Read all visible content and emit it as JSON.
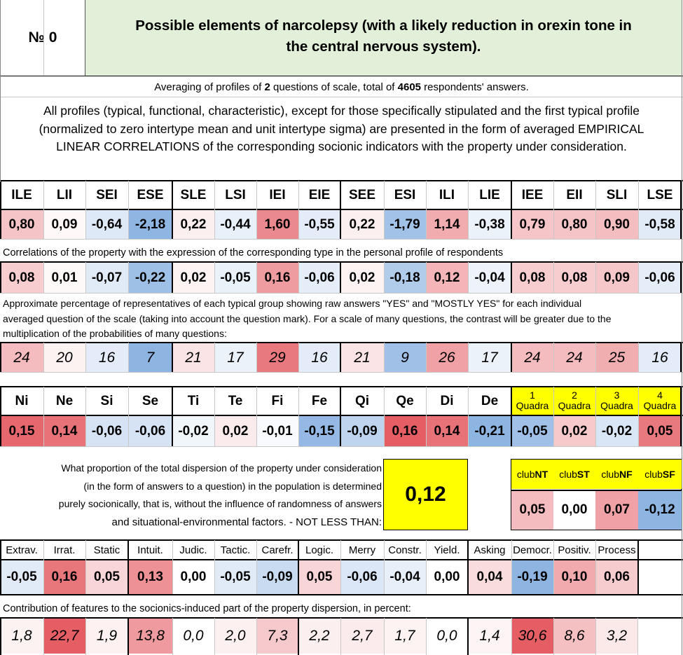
{
  "header": {
    "number_label": "№ 0",
    "title_line1": "Possible elements of narcolepsy (with a likely reduction in orexin tone in",
    "title_line2": "the central nervous system).",
    "title_bg": "#e2efd9"
  },
  "averaging": {
    "pre": "Averaging of profiles of ",
    "questions": "2",
    "mid": " questions of scale, total of ",
    "respondents": "4605",
    "post": " respondents' answers."
  },
  "description": {
    "line1": "All profiles (typical, functional, characteristic), except for those specifically stipulated and the first typical profile",
    "line2": "(normalized to zero intertype mean and unit intertype sigma) are presented in the form of averaged EMPIRICAL",
    "line3": "LINEAR CORRELATIONS of the corresponding socionic indicators with the property under consideration."
  },
  "types": {
    "labels": [
      "ILE",
      "LII",
      "SEI",
      "ESE",
      "SLE",
      "LSI",
      "IEI",
      "EIE",
      "SEE",
      "ESI",
      "ILI",
      "LIE",
      "IEE",
      "EII",
      "SLI",
      "LSE"
    ],
    "profile": [
      "0,80",
      "0,09",
      "-0,64",
      "-2,18",
      "0,22",
      "-0,44",
      "1,60",
      "-0,55",
      "0,22",
      "-1,79",
      "1,14",
      "-0,38",
      "0,79",
      "0,80",
      "0,90",
      "-0,58"
    ],
    "correlations_caption": "Correlations of the property with the expression of the corresponding type in the personal profile of respondents",
    "correlations": [
      "0,08",
      "0,01",
      "-0,07",
      "-0,22",
      "0,02",
      "-0,05",
      "0,16",
      "-0,06",
      "0,02",
      "-0,18",
      "0,12",
      "-0,04",
      "0,08",
      "0,08",
      "0,09",
      "-0,06"
    ],
    "percentage_caption_line1": "Approximate percentage of representatives of each typical group showing raw answers \"YES\" and \"MOSTLY YES\" for each individual",
    "percentage_caption_line2": "averaged question of the scale (taking into account the question mark). For a scale of many questions, the contrast will be greater due to the",
    "percentage_caption_line3": "multiplication of the probabilities of many questions:",
    "percentages": [
      "24",
      "20",
      "16",
      "7",
      "21",
      "17",
      "29",
      "16",
      "21",
      "9",
      "26",
      "17",
      "24",
      "24",
      "25",
      "16"
    ]
  },
  "elements": {
    "labels": [
      "Ni",
      "Ne",
      "Si",
      "Se",
      "Ti",
      "Te",
      "Fi",
      "Fe",
      "Qi",
      "Qe",
      "Di",
      "De"
    ],
    "values": [
      "0,15",
      "0,14",
      "-0,06",
      "-0,06",
      "-0,02",
      "0,02",
      "-0,01",
      "-0,15",
      "-0,09",
      "0,16",
      "0,14",
      "-0,21"
    ]
  },
  "quadras": {
    "nums": [
      "1",
      "2",
      "3",
      "4"
    ],
    "word": "Quadra",
    "values": [
      "-0,05",
      "0,02",
      "-0,02",
      "0,05"
    ],
    "bg": "#ffff00"
  },
  "dispersion": {
    "line1": "What proportion of the total dispersion of the property under consideration",
    "line2": "(in the form of answers to a question) in the population is determined",
    "line3": "purely socionically, that is, without the influence of randomness of answers",
    "line4": "and situational-environmental factors. - NOT LESS THAN:",
    "value": "0,12"
  },
  "clubs": {
    "prefix": "club",
    "names": [
      "NT",
      "ST",
      "NF",
      "SF"
    ],
    "values": [
      "0,05",
      "0,00",
      "0,07",
      "-0,12"
    ]
  },
  "features": {
    "labels": [
      "Extrav.",
      "Irrat.",
      "Static",
      "Intuit.",
      "Judic.",
      "Tactic.",
      "Carefr.",
      "Logic.",
      "Merry",
      "Constr.",
      "Yield.",
      "Asking",
      "Democr.",
      "Positiv.",
      "Process"
    ],
    "values": [
      "-0,05",
      "0,16",
      "0,05",
      "0,13",
      "0,00",
      "-0,05",
      "-0,09",
      "0,05",
      "-0,06",
      "-0,04",
      "0,00",
      "0,04",
      "-0,19",
      "0,10",
      "0,06"
    ],
    "contribution_caption": "Contribution of features to the sociоnics-induced part of the property dispersion, in percent:",
    "contributions": [
      "1,8",
      "22,7",
      "1,9",
      "13,8",
      "0,0",
      "2,0",
      "7,3",
      "2,2",
      "2,7",
      "1,7",
      "0,0",
      "1,4",
      "30,6",
      "8,6",
      "3,2"
    ]
  }
}
